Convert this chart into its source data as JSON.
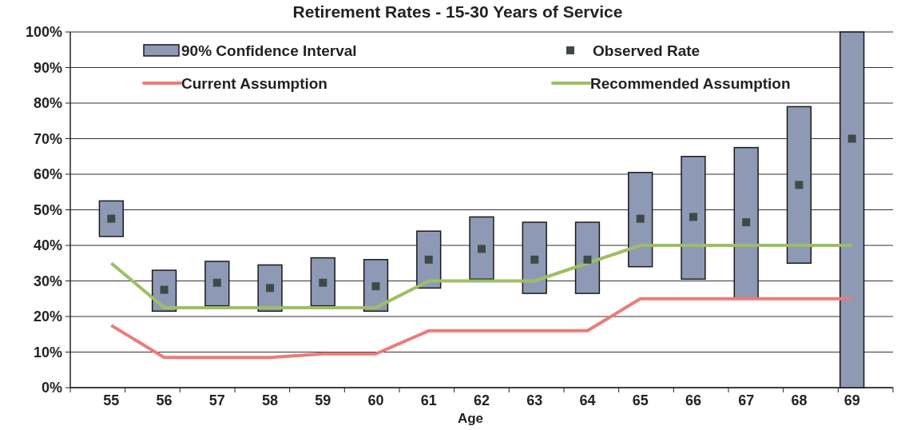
{
  "chart_data": {
    "type": "bar",
    "title": "Retirement Rates - 15-30 Years of Service",
    "xlabel": "Age",
    "categories": [
      "55",
      "56",
      "57",
      "58",
      "59",
      "60",
      "61",
      "62",
      "63",
      "64",
      "65",
      "66",
      "67",
      "68",
      "69"
    ],
    "ylim": [
      0,
      100
    ],
    "yticks": [
      {
        "value": 0,
        "label": "0%"
      },
      {
        "value": 10,
        "label": "10%"
      },
      {
        "value": 20,
        "label": "20%"
      },
      {
        "value": 30,
        "label": "30%"
      },
      {
        "value": 40,
        "label": "40%"
      },
      {
        "value": 50,
        "label": "50%"
      },
      {
        "value": 60,
        "label": "60%"
      },
      {
        "value": 70,
        "label": "70%"
      },
      {
        "value": 80,
        "label": "80%"
      },
      {
        "value": 90,
        "label": "90%"
      },
      {
        "value": 100,
        "label": "100%"
      }
    ],
    "grid": "y",
    "legend": "top",
    "series": [
      {
        "name": "90% Confidence Interval",
        "color": "#8e9ab5",
        "base": [
          42.5,
          21.5,
          23,
          21.5,
          23,
          21.5,
          28,
          30.5,
          26.5,
          26.5,
          34,
          30.5,
          25,
          35,
          0
        ],
        "values": [
          10,
          11.5,
          12.5,
          13,
          13.5,
          14.5,
          16,
          17.5,
          20,
          20,
          26.5,
          34.5,
          42.5,
          44,
          100
        ]
      },
      {
        "type": "scatter",
        "name": "Observed Rate",
        "color": "#3d4a48",
        "marker": "square",
        "x": [
          "55",
          "56",
          "57",
          "58",
          "59",
          "60",
          "61",
          "62",
          "63",
          "64",
          "65",
          "66",
          "67",
          "68",
          "69"
        ],
        "values": [
          47.5,
          27.5,
          29.5,
          28,
          29.5,
          28.5,
          36,
          39,
          36,
          36,
          47.5,
          48,
          46.5,
          57,
          70
        ]
      },
      {
        "type": "line",
        "name": "Current Assumption",
        "color": "#ec7b78",
        "values": [
          17.5,
          8.5,
          8.5,
          8.5,
          9.5,
          9.5,
          16,
          16,
          16,
          16,
          25,
          25,
          25,
          25,
          25
        ]
      },
      {
        "type": "line",
        "name": "Recommended Assumption",
        "color": "#9cbf64",
        "values": [
          35,
          22.5,
          22.5,
          22.5,
          22.5,
          22.5,
          30,
          30,
          30,
          35,
          40,
          40,
          40,
          40,
          40
        ]
      }
    ]
  }
}
